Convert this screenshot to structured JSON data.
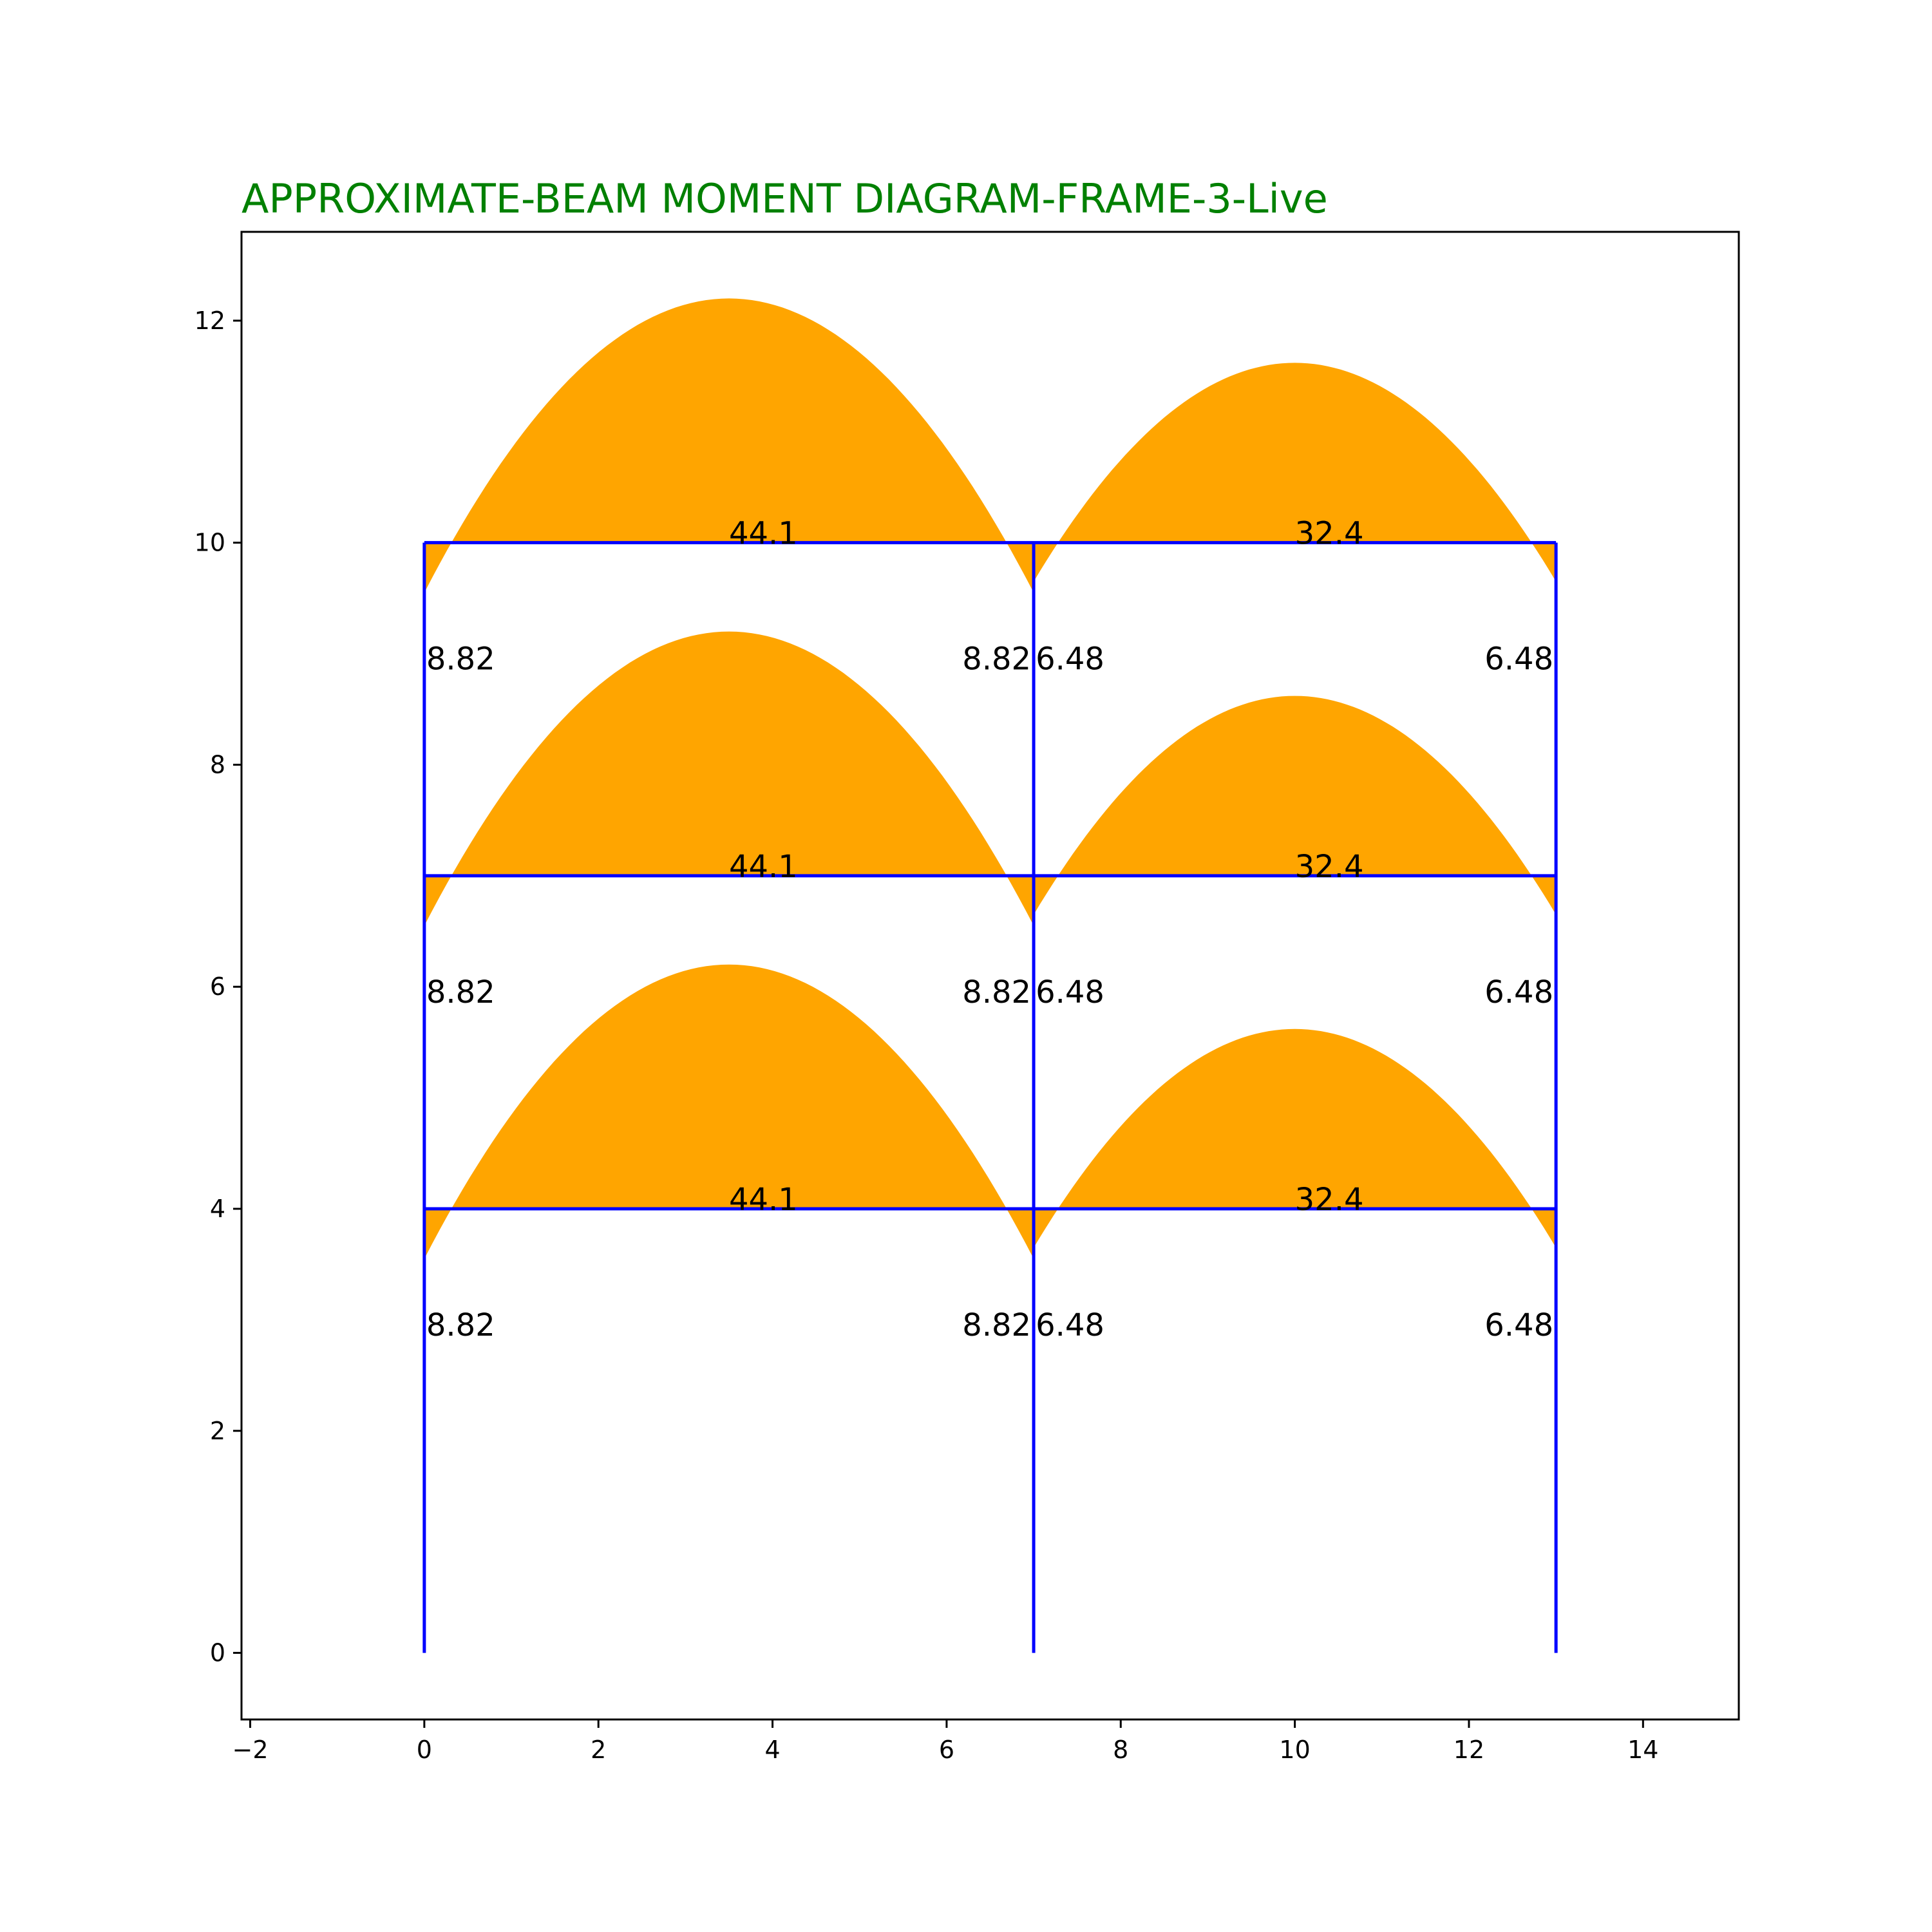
{
  "chart_data": {
    "type": "area",
    "title": "APPROXIMATE-BEAM MOMENT DIAGRAM-FRAME-3-Live",
    "xlabel": "",
    "ylabel": "",
    "xlim": [
      -2.1,
      15.1
    ],
    "ylim": [
      -0.6,
      12.8
    ],
    "xticks": [
      -2,
      0,
      2,
      4,
      6,
      8,
      10,
      12,
      14
    ],
    "yticks": [
      0,
      2,
      4,
      6,
      8,
      10,
      12
    ],
    "grid": false,
    "frame": {
      "columns_x": [
        0,
        7,
        13
      ],
      "floors_y": [
        0,
        4,
        7,
        10
      ]
    },
    "beams": [
      {
        "x_start": 0,
        "x_end": 7,
        "y": 4,
        "midspan_moment": "44.1",
        "end_moment_left": "8.82",
        "end_moment_right": "8.82",
        "peak_y": 6.2,
        "end_dip": 0.45
      },
      {
        "x_start": 7,
        "x_end": 13,
        "y": 4,
        "midspan_moment": "32.4",
        "end_moment_left": "6.48",
        "end_moment_right": "6.48",
        "peak_y": 5.62,
        "end_dip": 0.35
      },
      {
        "x_start": 0,
        "x_end": 7,
        "y": 7,
        "midspan_moment": "44.1",
        "end_moment_left": "8.82",
        "end_moment_right": "8.82",
        "peak_y": 9.2,
        "end_dip": 0.45
      },
      {
        "x_start": 7,
        "x_end": 13,
        "y": 7,
        "midspan_moment": "32.4",
        "end_moment_left": "6.48",
        "end_moment_right": "6.48",
        "peak_y": 8.62,
        "end_dip": 0.35
      },
      {
        "x_start": 0,
        "x_end": 7,
        "y": 10,
        "midspan_moment": "44.1",
        "end_moment_left": "8.82",
        "end_moment_right": "8.82",
        "peak_y": 12.2,
        "end_dip": 0.45
      },
      {
        "x_start": 7,
        "x_end": 13,
        "y": 10,
        "midspan_moment": "32.4",
        "end_moment_left": "6.48",
        "end_moment_right": "6.48",
        "peak_y": 11.62,
        "end_dip": 0.35
      }
    ],
    "colors": {
      "title": "#008000",
      "frame": "#0000ff",
      "fill": "#ffa500",
      "text": "#000000"
    }
  }
}
